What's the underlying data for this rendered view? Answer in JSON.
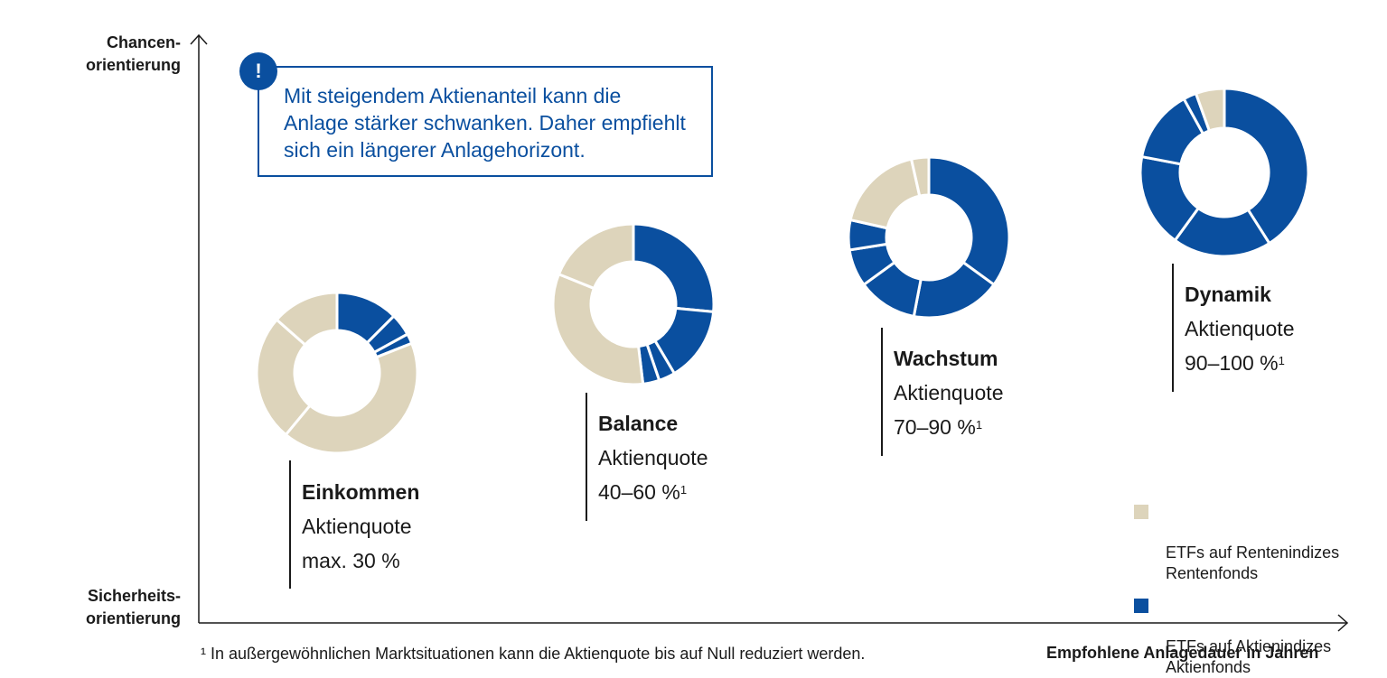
{
  "colors": {
    "beige": "#ddd4bb",
    "blue": "#0a4f9f",
    "axis": "#1a1a1a"
  },
  "axes": {
    "y_top_label": "Chancen-\norientierung",
    "y_bottom_label": "Sicherheits-\norientierung",
    "x_label": "Empfohlene Anlagedauer in Jahren"
  },
  "callout": {
    "badge": "!",
    "text": "Mit steigendem Aktienanteil kann die\nAnlage stärker schwanken. Daher empfiehlt\nsich ein längerer Anlagehorizont."
  },
  "legend": [
    {
      "label": "ETFs auf Rentenindizes\nRentenfonds",
      "color": "#ddd4bb"
    },
    {
      "label": "ETFs auf Aktienindizes\nAktienfonds",
      "color": "#0a4f9f"
    }
  ],
  "footnote": "¹ In außergewöhnlichen Marktsituationen kann die Aktienquote bis auf Null reduziert werden.",
  "chart_data": {
    "type": "pie",
    "series_names": [
      "ETFs auf Rentenindizes / Rentenfonds",
      "ETFs auf Aktienindizes / Aktienfonds"
    ],
    "profiles": [
      {
        "name": "Einkommen",
        "subtitle": "Aktienquote",
        "value": "max. 30 %",
        "footnote_mark": "",
        "equity_share_range": [
          0,
          30
        ],
        "slices": [
          {
            "type": "equity",
            "share": 0.125
          },
          {
            "type": "equity",
            "share": 0.045
          },
          {
            "type": "equity",
            "share": 0.02
          },
          {
            "type": "bond",
            "share": 0.42
          },
          {
            "type": "bond",
            "share": 0.255
          },
          {
            "type": "bond",
            "share": 0.135
          }
        ]
      },
      {
        "name": "Balance",
        "subtitle": "Aktienquote",
        "value": "40–60 %",
        "footnote_mark": "1",
        "equity_share_range": [
          40,
          60
        ],
        "slices": [
          {
            "type": "equity",
            "share": 0.265
          },
          {
            "type": "equity",
            "share": 0.15
          },
          {
            "type": "equity",
            "share": 0.033
          },
          {
            "type": "equity",
            "share": 0.033
          },
          {
            "type": "bond",
            "share": 0.33
          },
          {
            "type": "bond",
            "share": 0.189
          }
        ]
      },
      {
        "name": "Wachstum",
        "subtitle": "Aktienquote",
        "value": "70–90 %",
        "footnote_mark": "1",
        "equity_share_range": [
          70,
          90
        ],
        "slices": [
          {
            "type": "equity",
            "share": 0.35
          },
          {
            "type": "equity",
            "share": 0.18
          },
          {
            "type": "equity",
            "share": 0.12
          },
          {
            "type": "equity",
            "share": 0.075
          },
          {
            "type": "equity",
            "share": 0.06
          },
          {
            "type": "bond",
            "share": 0.18
          },
          {
            "type": "bond",
            "share": 0.035
          }
        ]
      },
      {
        "name": "Dynamik",
        "subtitle": "Aktienquote",
        "value": "90–100 %",
        "footnote_mark": "1",
        "equity_share_range": [
          90,
          100
        ],
        "slices": [
          {
            "type": "equity",
            "share": 0.41
          },
          {
            "type": "equity",
            "share": 0.19
          },
          {
            "type": "equity",
            "share": 0.18
          },
          {
            "type": "equity",
            "share": 0.14
          },
          {
            "type": "equity",
            "share": 0.025
          },
          {
            "type": "bond",
            "share": 0.055
          }
        ]
      }
    ]
  }
}
